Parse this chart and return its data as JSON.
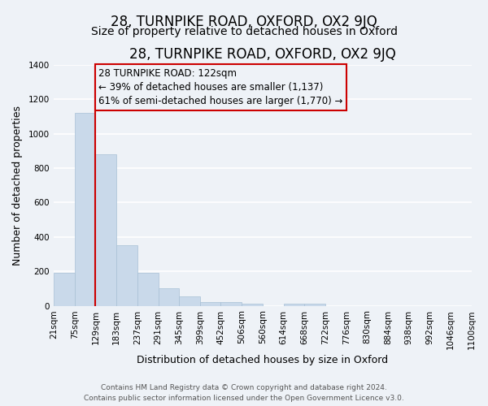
{
  "title": "28, TURNPIKE ROAD, OXFORD, OX2 9JQ",
  "subtitle": "Size of property relative to detached houses in Oxford",
  "xlabel": "Distribution of detached houses by size in Oxford",
  "ylabel": "Number of detached properties",
  "bar_color": "#c9d9ea",
  "bar_edge_color": "#a8c0d6",
  "background_color": "#eef2f7",
  "grid_color": "#ffffff",
  "annotation_box_color": "#cc0000",
  "vline_color": "#cc0000",
  "bin_edges": [
    21,
    75,
    129,
    183,
    237,
    291,
    345,
    399,
    452,
    506,
    560,
    614,
    668,
    722,
    776,
    830,
    884,
    938,
    992,
    1046,
    1100
  ],
  "bin_labels": [
    "21sqm",
    "75sqm",
    "129sqm",
    "183sqm",
    "237sqm",
    "291sqm",
    "345sqm",
    "399sqm",
    "452sqm",
    "506sqm",
    "560sqm",
    "614sqm",
    "668sqm",
    "722sqm",
    "776sqm",
    "830sqm",
    "884sqm",
    "938sqm",
    "992sqm",
    "1046sqm",
    "1100sqm"
  ],
  "bar_heights": [
    190,
    1120,
    880,
    350,
    190,
    100,
    55,
    23,
    20,
    12,
    0,
    12,
    10,
    0,
    0,
    0,
    0,
    0,
    0,
    0
  ],
  "ylim": [
    0,
    1400
  ],
  "yticks": [
    0,
    200,
    400,
    600,
    800,
    1000,
    1200,
    1400
  ],
  "annotation_title": "28 TURNPIKE ROAD: 122sqm",
  "annotation_line2": "← 39% of detached houses are smaller (1,137)",
  "annotation_line3": "61% of semi-detached houses are larger (1,770) →",
  "footer_line1": "Contains HM Land Registry data © Crown copyright and database right 2024.",
  "footer_line2": "Contains public sector information licensed under the Open Government Licence v3.0.",
  "title_fontsize": 12,
  "subtitle_fontsize": 10,
  "axis_label_fontsize": 9,
  "tick_fontsize": 7.5,
  "annotation_fontsize": 8.5,
  "footer_fontsize": 6.5
}
